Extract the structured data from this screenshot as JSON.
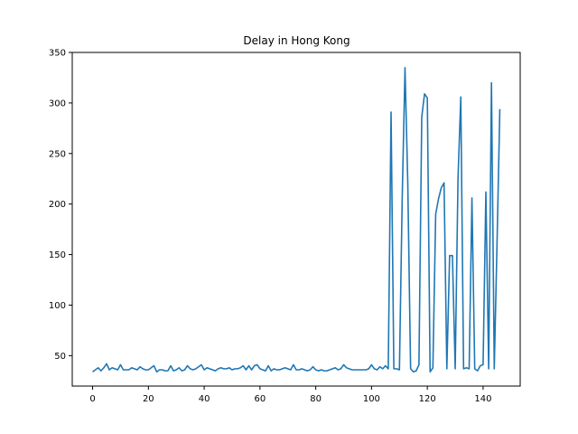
{
  "chart_data": {
    "type": "line",
    "title": "Delay in Hong Kong",
    "xlabel": "",
    "ylabel": "",
    "xlim": [
      -7.3,
      153.3
    ],
    "ylim": [
      19.9,
      350
    ],
    "xticks": [
      0,
      20,
      40,
      60,
      80,
      100,
      120,
      140
    ],
    "yticks": [
      50,
      100,
      150,
      200,
      250,
      300,
      350
    ],
    "grid": false,
    "line_color": "#1f77b4",
    "series": [
      {
        "values": [
          34,
          36,
          38,
          35,
          38,
          42,
          36,
          38,
          37,
          36,
          41,
          36,
          36,
          36,
          38,
          37,
          36,
          39,
          37,
          36,
          36,
          38,
          40,
          34,
          36,
          36,
          35,
          35,
          40,
          35,
          36,
          38,
          35,
          36,
          40,
          37,
          36,
          37,
          39,
          41,
          36,
          38,
          37,
          36,
          35,
          37,
          38,
          37,
          37,
          38,
          36,
          37,
          37,
          38,
          40,
          36,
          40,
          36,
          40,
          41,
          37,
          36,
          35,
          40,
          35,
          37,
          36,
          36,
          37,
          38,
          37,
          36,
          41,
          36,
          36,
          37,
          36,
          35,
          36,
          39,
          36,
          35,
          36,
          35,
          35,
          36,
          37,
          38,
          36,
          37,
          41,
          38,
          37,
          36,
          36,
          36,
          36,
          36,
          36,
          37,
          41,
          37,
          36,
          39,
          37,
          40,
          37,
          291,
          37,
          37,
          36,
          206,
          335,
          220,
          37,
          34,
          35,
          41,
          286,
          309,
          305,
          34,
          38,
          190,
          205,
          216,
          221,
          37,
          149,
          149,
          37,
          225,
          306,
          37,
          38,
          37,
          206,
          37,
          35,
          40,
          41,
          212,
          37,
          320,
          37,
          162,
          294
        ]
      }
    ]
  }
}
